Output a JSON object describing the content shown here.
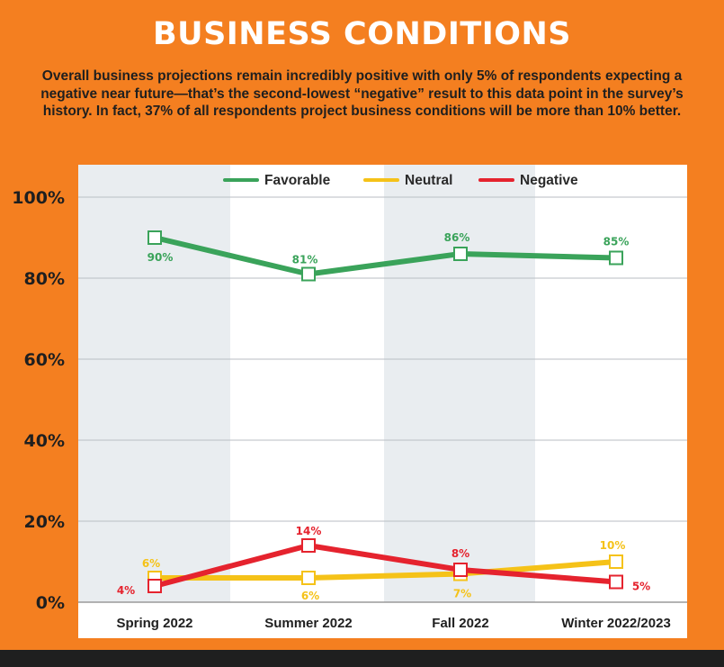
{
  "header": {
    "title": "BUSINESS CONDITIONS",
    "subtitle": "Overall business projections remain incredibly positive with only 5% of respondents expecting a negative near future—that’s the second-lowest “negative” result to this data point in the survey’s history. In fact, 37% of all respondents project business conditions will be more than 10% better."
  },
  "colors": {
    "background": "#f47f20",
    "favorable": "#3aa35a",
    "neutral": "#f5c218",
    "negative": "#e5232e",
    "band": "#e9edf0",
    "bottom_bar": "#1f1f1f"
  },
  "chart_data": {
    "type": "line",
    "categories": [
      "Spring 2022",
      "Summer 2022",
      "Fall 2022",
      "Winter 2022/2023"
    ],
    "series": [
      {
        "name": "Favorable",
        "color": "#3aa35a",
        "values": [
          90,
          81,
          86,
          85
        ],
        "labels": [
          "90%",
          "81%",
          "86%",
          "85%"
        ]
      },
      {
        "name": "Neutral",
        "color": "#f5c218",
        "values": [
          6,
          6,
          7,
          10
        ],
        "labels": [
          "6%",
          "6%",
          "7%",
          "10%"
        ]
      },
      {
        "name": "Negative",
        "color": "#e5232e",
        "values": [
          4,
          14,
          8,
          5
        ],
        "labels": [
          "4%",
          "14%",
          "8%",
          "5%"
        ]
      }
    ],
    "yticks": [
      "100%",
      "80%",
      "60%",
      "40%",
      "20%",
      "0%"
    ],
    "ylim": [
      0,
      100
    ],
    "grid": true,
    "legend_position": "top"
  }
}
